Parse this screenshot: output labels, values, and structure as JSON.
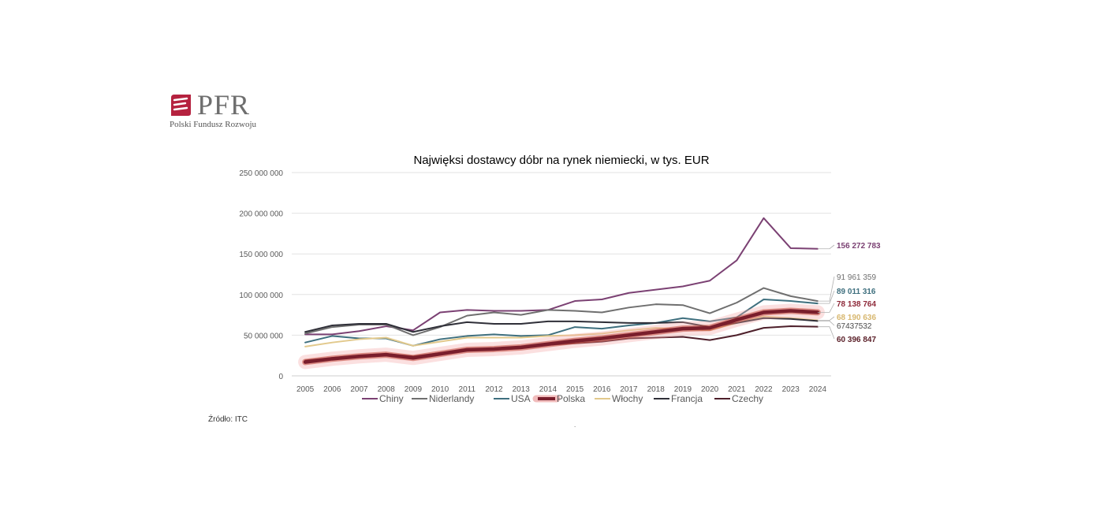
{
  "logo": {
    "text": "PFR",
    "subtitle": "Polski Fundusz Rozwoju"
  },
  "source": "Źródło: ITC",
  "footnote_mark": ".",
  "colors": {
    "Chiny": "#7b4173",
    "Niderlandy": "#6f6f6f",
    "USA": "#3e6f7e",
    "Polska": "#7a1e2c",
    "Włochy": "#e2c98c",
    "Francja": "#2f2f38",
    "Czechy": "#4d1f2a",
    "brand": "#b5223f"
  },
  "chart_data": {
    "type": "line",
    "title": "Najwięksi dostawcy dóbr na rynek niemiecki,  w tys. EUR",
    "xlabel": "",
    "ylabel": "",
    "ylim": [
      0,
      250000000
    ],
    "yticks": [
      0,
      50000000,
      100000000,
      150000000,
      200000000,
      250000000
    ],
    "ytick_labels": [
      "0",
      "50 000 000",
      "100 000 000",
      "150 000 000",
      "200 000 000",
      "250 000 000"
    ],
    "grid": true,
    "legend": "bottom",
    "x": [
      "2005",
      "2006",
      "2007",
      "2008",
      "2009",
      "2010",
      "2011",
      "2012",
      "2013",
      "2014",
      "2015",
      "2016",
      "2017",
      "2018",
      "2019",
      "2020",
      "2021",
      "2022",
      "2023",
      "2024"
    ],
    "series": [
      {
        "name": "Chiny",
        "values": [
          51000000,
          51000000,
          55000000,
          61000000,
          56000000,
          78000000,
          81000000,
          80000000,
          80000000,
          81000000,
          92000000,
          94000000,
          102000000,
          106000000,
          110000000,
          117000000,
          142000000,
          194000000,
          157000000,
          156272783
        ],
        "end_label": "156 272 783"
      },
      {
        "name": "Niderlandy",
        "values": [
          52000000,
          60000000,
          63000000,
          63000000,
          50000000,
          60000000,
          74000000,
          78000000,
          75000000,
          81000000,
          80000000,
          78000000,
          84000000,
          88000000,
          87000000,
          77000000,
          90000000,
          108000000,
          98000000,
          91961359
        ],
        "end_label": "91 961 359"
      },
      {
        "name": "USA",
        "values": [
          41000000,
          49000000,
          46000000,
          46000000,
          37000000,
          45000000,
          49000000,
          51000000,
          49000000,
          50000000,
          60000000,
          58000000,
          62000000,
          65000000,
          71000000,
          67000000,
          72000000,
          94000000,
          92000000,
          89011316
        ],
        "end_label": "89 011 316"
      },
      {
        "name": "Polska",
        "values": [
          17000000,
          21000000,
          24000000,
          26000000,
          22000000,
          27000000,
          32000000,
          33000000,
          35000000,
          39000000,
          43000000,
          46000000,
          50000000,
          54000000,
          58000000,
          59000000,
          69000000,
          78000000,
          80000000,
          78138764
        ],
        "end_label": "78 138 764"
      },
      {
        "name": "Włochy",
        "values": [
          36000000,
          41000000,
          45000000,
          47000000,
          37000000,
          42000000,
          47000000,
          47000000,
          47000000,
          49000000,
          50000000,
          52000000,
          56000000,
          59000000,
          57000000,
          56000000,
          65000000,
          73000000,
          71000000,
          68190636
        ],
        "end_label": "68 190 636"
      },
      {
        "name": "Francja",
        "values": [
          54000000,
          62000000,
          64000000,
          64000000,
          54000000,
          61000000,
          66000000,
          64000000,
          64000000,
          67000000,
          67000000,
          66000000,
          65000000,
          65000000,
          66000000,
          60000000,
          65000000,
          71000000,
          70000000,
          67437532
        ],
        "end_label": "67437532"
      },
      {
        "name": "Czechy",
        "values": [
          19000000,
          22000000,
          25000000,
          27000000,
          24000000,
          28000000,
          32000000,
          32000000,
          34000000,
          38000000,
          40000000,
          42000000,
          46000000,
          47000000,
          48000000,
          44000000,
          50000000,
          59000000,
          61000000,
          60396847
        ],
        "end_label": "60 396 847"
      }
    ]
  }
}
